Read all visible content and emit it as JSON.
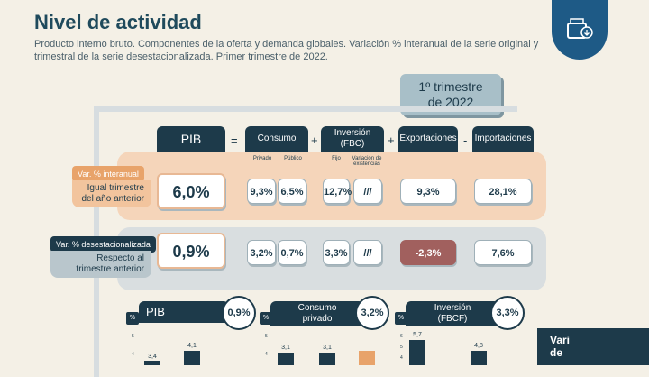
{
  "header": {
    "title": "Nivel de actividad",
    "subtitle": "Producto interno bruto. Componentes de la oferta y demanda globales. Variación % interanual de la serie original y trimestral de la serie desestacionalizada. Primer trimestre de 2022."
  },
  "period": {
    "line1": "1º trimestre",
    "line2": "de 2022"
  },
  "columns": {
    "pib": "PIB",
    "consumo": "Consumo",
    "consumo_privado": "Privado",
    "consumo_publico": "Público",
    "inversion_line1": "Inversión",
    "inversion_line2": "(FBC)",
    "inversion_fijo": "Fijo",
    "inversion_existencias": "Variación de existencias",
    "exportaciones": "Exportaciones",
    "importaciones": "Importaciones",
    "op_equals": "=",
    "op_plus1": "+",
    "op_plus2": "+",
    "op_minus": "-"
  },
  "row_interanual": {
    "tag": "Var. % interanual",
    "desc_line1": "Igual trimestre",
    "desc_line2": "del año anterior",
    "pib": "6,0%",
    "consumo_privado": "9,3%",
    "consumo_publico": "6,5%",
    "inversion_fijo": "12,7%",
    "inversion_existencias": "///",
    "exportaciones": "9,3%",
    "importaciones": "28,1%"
  },
  "row_desest": {
    "tag": "Var. % desestacionalizada",
    "desc_line1": "Respecto al",
    "desc_line2": "trimestre anterior",
    "pib": "0,9%",
    "consumo_privado": "3,2%",
    "consumo_publico": "0,7%",
    "inversion_fijo": "3,3%",
    "inversion_existencias": "///",
    "exportaciones": "-2,3%",
    "importaciones": "7,6%"
  },
  "mini_charts": [
    {
      "title": "PIB",
      "badge": "0,9%",
      "pct": "%",
      "ticks": [
        "5",
        "4"
      ],
      "bars": [
        "3,4",
        "4,1"
      ]
    },
    {
      "title_line1": "Consumo",
      "title_line2": "privado",
      "badge": "3,2%",
      "pct": "%",
      "ticks": [
        "5",
        "4"
      ],
      "bars": [
        "3,1",
        "3,1"
      ]
    },
    {
      "title_line1": "Inversión",
      "title_line2": "(FBCF)",
      "badge": "3,3%",
      "pct": "%",
      "ticks": [
        "6",
        "5",
        "4"
      ],
      "bars": [
        "5,7",
        "4,8"
      ]
    }
  ],
  "side_panel": {
    "line1": "Vari",
    "line2": "de"
  },
  "colors": {
    "dark": "#1d3a4a",
    "accent": "#e8a36a",
    "band": "#f5d2b5",
    "neg": "#a1605e"
  }
}
